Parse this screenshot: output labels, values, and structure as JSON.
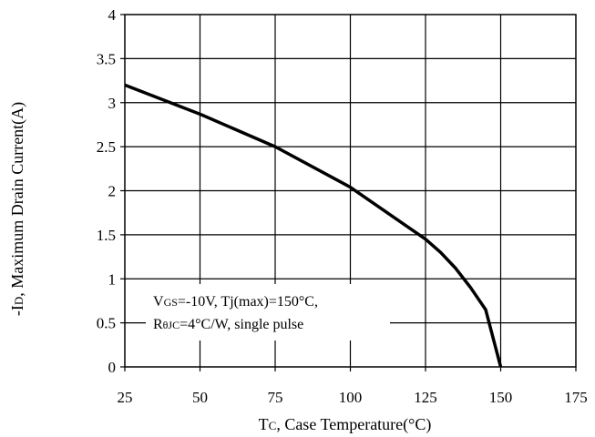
{
  "chart_data": {
    "type": "line",
    "title": "",
    "xlabel": "Tc, Case Temperature(°C)",
    "xlabel_parts": {
      "main": "T",
      "sub": "C",
      "rest": ", Case Temperature(°C)"
    },
    "ylabel": "-ID, Maximum Drain Current(A)",
    "ylabel_parts": {
      "main": "-I",
      "sub": "D",
      "rest": ", Maximum Drain Current(A)"
    },
    "xlim": [
      25,
      175
    ],
    "ylim": [
      0,
      4
    ],
    "x_ticks": [
      25,
      50,
      75,
      100,
      125,
      150,
      175
    ],
    "x_tick_labels": [
      "25",
      "50",
      "75",
      "100",
      "125",
      "150",
      "175"
    ],
    "y_ticks": [
      0,
      0.5,
      1,
      1.5,
      2,
      2.5,
      3,
      3.5,
      4
    ],
    "y_tick_labels": [
      "0",
      "0.5",
      "1",
      "1.5",
      "2",
      "2.5",
      "3",
      "3.5",
      "4"
    ],
    "grid": true,
    "series": [
      {
        "x": [
          25,
          50,
          75,
          100,
          125,
          130,
          135,
          140,
          145,
          150
        ],
        "y": [
          3.2,
          2.87,
          2.5,
          2.04,
          1.45,
          1.3,
          1.12,
          0.9,
          0.65,
          0.0
        ]
      }
    ],
    "annotation": {
      "line1": {
        "v": "V",
        "v_sub": "GS",
        "rest": "=-10V, Tj(max)=150°C,"
      },
      "line2": {
        "r": "R",
        "r_sub": "θJC",
        "rest": "=4°C/W, single pulse"
      }
    }
  }
}
